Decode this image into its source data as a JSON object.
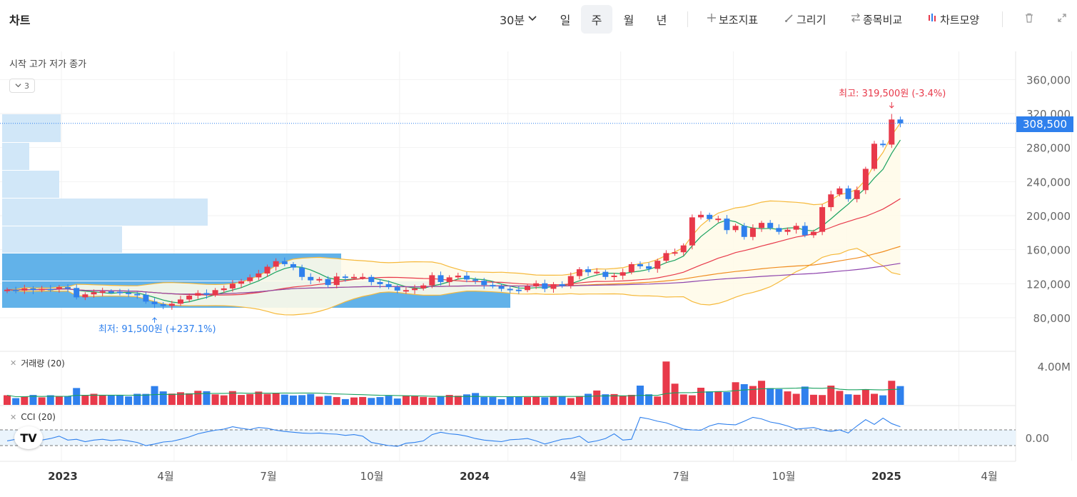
{
  "header": {
    "title": "차트",
    "interval": "30분",
    "periods": [
      "일",
      "주",
      "월",
      "년"
    ],
    "active_period": "주",
    "tools": [
      {
        "icon": "plus-icon",
        "label": "보조지표"
      },
      {
        "icon": "pencil-icon",
        "label": "그리기"
      },
      {
        "icon": "compare-icon",
        "label": "종목비교"
      },
      {
        "icon": "candle-icon",
        "label": "차트모양"
      }
    ],
    "trash_icon": "trash-icon",
    "expand_icon": "expand-icon"
  },
  "legend": {
    "ohlc": "시작 고가 저가 종가",
    "collapse_count": "3"
  },
  "price": {
    "last": "308,500",
    "max_label": "최고: 319,500원 (-3.4%)",
    "min_label": "최저: 91,500원 (+237.1%)",
    "colors": {
      "up": "#e8394a",
      "down": "#2f80ed"
    }
  },
  "volume_panel": {
    "title": "거래량 (20)"
  },
  "cci_panel": {
    "title": "CCI (20)"
  },
  "tv_logo": "TV",
  "chart_data": [
    {
      "type": "candlestick",
      "title": "",
      "x_ticks": [
        "2023",
        "4월",
        "7월",
        "10월",
        "2024",
        "4월",
        "7월",
        "10월",
        "2025",
        "4월"
      ],
      "y_ticks": [
        "80,000",
        "120,000",
        "160,000",
        "200,000",
        "240,000",
        "280,000",
        "320,000",
        "360,000"
      ],
      "ylim": [
        70000,
        370000
      ],
      "last": 308500,
      "max": 319500,
      "min": 91500,
      "closes": [
        113000,
        112000,
        114500,
        112500,
        114000,
        113500,
        116000,
        115000,
        104000,
        107500,
        110000,
        111000,
        110500,
        109500,
        108000,
        107000,
        99000,
        96000,
        94000,
        96500,
        101500,
        106000,
        109000,
        107000,
        112500,
        114500,
        120000,
        123000,
        127500,
        132000,
        140000,
        146500,
        143000,
        139000,
        128000,
        124000,
        125500,
        118500,
        128500,
        127000,
        128000,
        128000,
        122000,
        119500,
        116000,
        112000,
        112500,
        114500,
        118000,
        130000,
        122000,
        127500,
        129500,
        125000,
        123500,
        118500,
        117000,
        114000,
        113000,
        112500,
        117000,
        120500,
        114000,
        119500,
        117500,
        129000,
        137000,
        133500,
        134000,
        128000,
        129500,
        133500,
        143000,
        140500,
        137500,
        147000,
        156000,
        157000,
        165000,
        198000,
        201000,
        196000,
        196500,
        183000,
        188000,
        175000,
        185500,
        191500,
        185500,
        181000,
        183500,
        188000,
        177000,
        181000,
        210000,
        225000,
        232000,
        219500,
        230000,
        255000,
        284500,
        283500,
        313000,
        308500
      ],
      "volume_ylim": [
        0,
        5000000
      ],
      "volume_ticks": [
        "4.00M"
      ],
      "volume": [
        1000000,
        700000,
        860000,
        1030000,
        780000,
        1000000,
        870000,
        920000,
        1750000,
        1000000,
        1150000,
        1000000,
        1010000,
        1040000,
        880000,
        1150000,
        1140000,
        1950000,
        1400000,
        1170000,
        1310000,
        1200000,
        1460000,
        1420000,
        1090000,
        990000,
        1430000,
        1030000,
        1120000,
        1380000,
        1140000,
        1200000,
        1070000,
        970000,
        1010000,
        1130000,
        860000,
        940000,
        810000,
        600000,
        770000,
        820000,
        720000,
        810000,
        950000,
        660000,
        930000,
        910000,
        830000,
        750000,
        900000,
        1030000,
        950000,
        1090000,
        1230000,
        810000,
        810000,
        590000,
        830000,
        840000,
        810000,
        870000,
        790000,
        890000,
        920000,
        700000,
        900000,
        1150000,
        1490000,
        1100000,
        1120000,
        940000,
        1040000,
        2000000,
        1100000,
        870000,
        4500000,
        2200000,
        1080000,
        990000,
        1780000,
        1400000,
        1420000,
        1330000,
        2350000,
        2150000,
        1960000,
        2500000,
        1740000,
        1640000,
        1400000,
        1150000,
        1900000,
        1050000,
        1020000,
        2000000,
        1450000,
        1100000,
        1050000,
        1630000,
        1150000,
        990000,
        2500000,
        1950000
      ],
      "cci_ticks": [
        "0.00"
      ],
      "cci": [
        -40,
        -20,
        -30,
        -25,
        -30,
        -10,
        20,
        -30,
        -20,
        -50,
        -30,
        -20,
        -35,
        -25,
        -40,
        -60,
        -100,
        -80,
        -55,
        -45,
        -20,
        10,
        50,
        75,
        95,
        110,
        140,
        120,
        105,
        130,
        120,
        95,
        80,
        70,
        60,
        55,
        60,
        50,
        45,
        30,
        40,
        20,
        -60,
        -80,
        -100,
        -110,
        -70,
        -60,
        -40,
        40,
        70,
        50,
        40,
        20,
        -10,
        -30,
        -40,
        -50,
        -25,
        -20,
        -10,
        -40,
        -80,
        -50,
        -20,
        -10,
        20,
        -60,
        -40,
        -10,
        50,
        -30,
        -20,
        260,
        240,
        210,
        190,
        150,
        110,
        100,
        95,
        150,
        180,
        170,
        165,
        210,
        260,
        240,
        200,
        180,
        150,
        110,
        120,
        130,
        100,
        80,
        100,
        60,
        150,
        230,
        170,
        250,
        180,
        140
      ]
    }
  ]
}
